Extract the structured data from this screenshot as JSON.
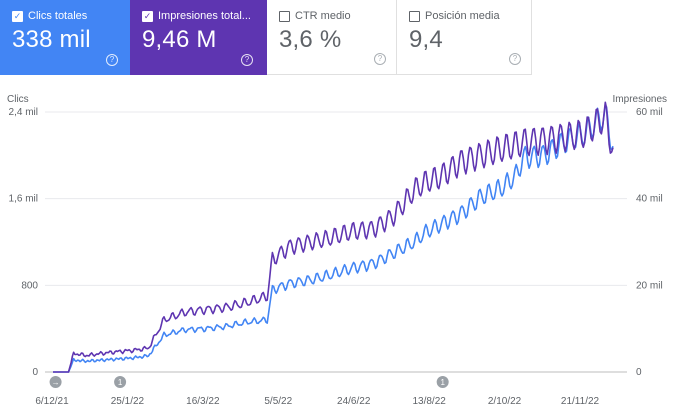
{
  "metrics": [
    {
      "label": "Clics totales",
      "value": "338 mil",
      "checked": true,
      "color": "#4285f4"
    },
    {
      "label": "Impresiones total...",
      "value": "9,46 M",
      "checked": true,
      "color": "#5e35b1"
    },
    {
      "label": "CTR medio",
      "value": "3,6 %",
      "checked": false,
      "color": "#ffffff"
    },
    {
      "label": "Posición media",
      "value": "9,4",
      "checked": false,
      "color": "#ffffff"
    }
  ],
  "help_icon": "?",
  "check_icon": "✓",
  "chart_data": {
    "type": "line",
    "left_axis": {
      "title": "Clics",
      "ticks": [
        "0",
        "800",
        "1,6 mil",
        "2,4 mil"
      ],
      "range": [
        0,
        2400
      ]
    },
    "right_axis": {
      "title": "Impresiones",
      "ticks": [
        "0",
        "20 mil",
        "40 mil",
        "60 mil"
      ],
      "range": [
        0,
        60000
      ]
    },
    "x_ticks": [
      "6/12/21",
      "25/1/22",
      "16/3/22",
      "5/5/22",
      "24/6/22",
      "13/8/22",
      "2/10/22",
      "21/11/22"
    ],
    "annotations": [
      {
        "label": "→",
        "at": "8/12/21"
      },
      {
        "label": "1",
        "at": "27/1/22"
      },
      {
        "label": "1",
        "at": "4/10/22"
      }
    ],
    "series": [
      {
        "name": "Clics totales",
        "color": "#4285f4",
        "axis": "left",
        "points": [
          [
            0,
            0
          ],
          [
            12,
            0
          ],
          [
            16,
            110
          ],
          [
            26,
            100
          ],
          [
            38,
            110
          ],
          [
            50,
            120
          ],
          [
            62,
            130
          ],
          [
            74,
            150
          ],
          [
            86,
            340
          ],
          [
            102,
            390
          ],
          [
            118,
            400
          ],
          [
            134,
            420
          ],
          [
            150,
            460
          ],
          [
            166,
            480
          ],
          [
            170,
            760
          ],
          [
            184,
            820
          ],
          [
            200,
            850
          ],
          [
            216,
            900
          ],
          [
            232,
            960
          ],
          [
            248,
            1000
          ],
          [
            264,
            1100
          ],
          [
            280,
            1200
          ],
          [
            290,
            1300
          ],
          [
            300,
            1360
          ],
          [
            316,
            1460
          ],
          [
            332,
            1620
          ],
          [
            348,
            1700
          ],
          [
            360,
            1830
          ],
          [
            364,
            1980
          ],
          [
            380,
            2000
          ],
          [
            396,
            2120
          ],
          [
            412,
            2200
          ],
          [
            428,
            2380
          ],
          [
            434,
            2080
          ]
        ]
      },
      {
        "name": "Impresiones totales",
        "color": "#5e35b1",
        "axis": "right",
        "points": [
          [
            0,
            0
          ],
          [
            12,
            0
          ],
          [
            16,
            4300
          ],
          [
            26,
            3800
          ],
          [
            38,
            4300
          ],
          [
            50,
            4700
          ],
          [
            62,
            5000
          ],
          [
            74,
            5500
          ],
          [
            86,
            12000
          ],
          [
            102,
            13800
          ],
          [
            118,
            14400
          ],
          [
            134,
            14900
          ],
          [
            150,
            16000
          ],
          [
            166,
            17500
          ],
          [
            170,
            26000
          ],
          [
            184,
            29000
          ],
          [
            200,
            30000
          ],
          [
            216,
            31000
          ],
          [
            232,
            32500
          ],
          [
            248,
            33000
          ],
          [
            264,
            36000
          ],
          [
            280,
            42000
          ],
          [
            290,
            44000
          ],
          [
            300,
            45000
          ],
          [
            316,
            48500
          ],
          [
            332,
            50000
          ],
          [
            348,
            51500
          ],
          [
            360,
            52500
          ],
          [
            364,
            53000
          ],
          [
            380,
            53500
          ],
          [
            396,
            54200
          ],
          [
            412,
            55000
          ],
          [
            428,
            59000
          ],
          [
            434,
            51000
          ]
        ]
      }
    ]
  }
}
